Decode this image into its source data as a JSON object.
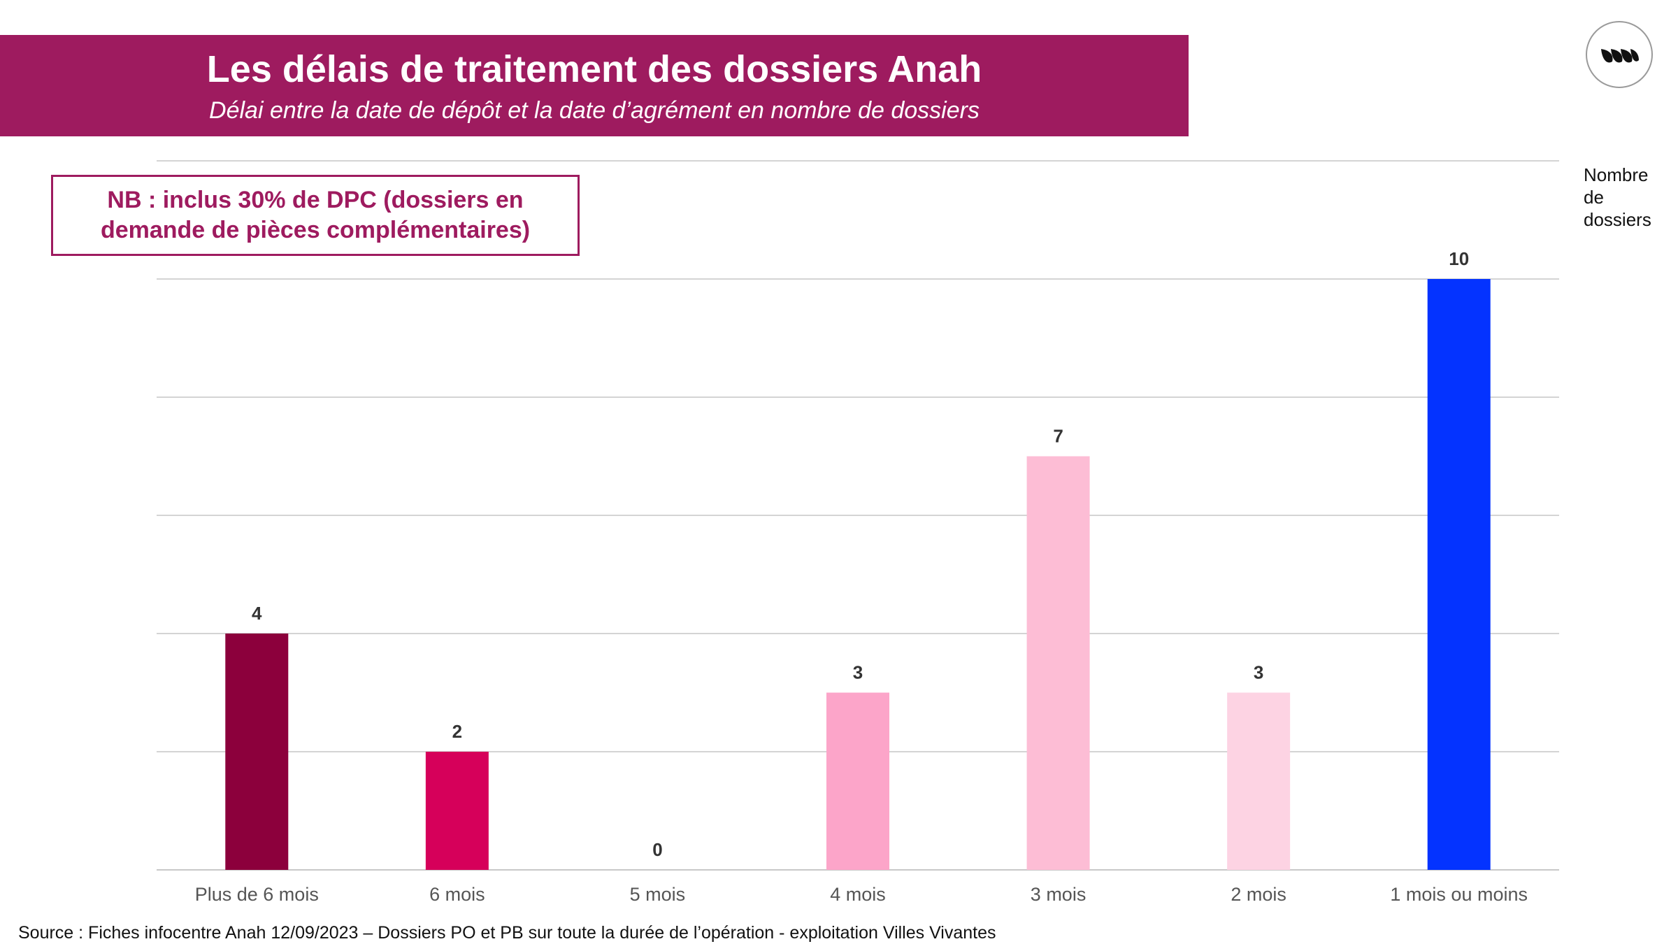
{
  "header": {
    "title": "Les délais de traitement des dossiers Anah",
    "subtitle": "Délai entre la date de dépôt et la date d’agrément en nombre de dossiers"
  },
  "note": {
    "line1": "NB : inclus 30% de DPC (dossiers en",
    "line2": "demande de pièces complémentaires)"
  },
  "logo": {
    "icon": "villes-vivantes-logo-icon"
  },
  "source": "Source : Fiches infocentre Anah 12/09/2023 – Dossiers PO et PB sur toute la durée de l’opération - exploitation Villes Vivantes",
  "chart_data": {
    "type": "bar",
    "title": "Les délais de traitement des dossiers Anah",
    "subtitle": "Délai entre la date de dépôt et la date d’agrément en nombre de dossiers",
    "ylabel_lines": [
      "Nombre",
      "de",
      "dossiers"
    ],
    "xlabel": "",
    "categories": [
      "Plus de 6 mois",
      "6 mois",
      "5 mois",
      "4 mois",
      "3 mois",
      "2 mois",
      "1 mois ou moins"
    ],
    "values": [
      4,
      2,
      0,
      3,
      7,
      3,
      10
    ],
    "colors": [
      "#8c003c",
      "#d6005a",
      "#f48fb6",
      "#fca5c9",
      "#fdbdd5",
      "#fdd3e3",
      "#0433ff"
    ],
    "ylim": [
      0,
      12
    ],
    "ytick_step": 2,
    "grid": true,
    "show_y_tick_labels": false,
    "legend": "none"
  }
}
